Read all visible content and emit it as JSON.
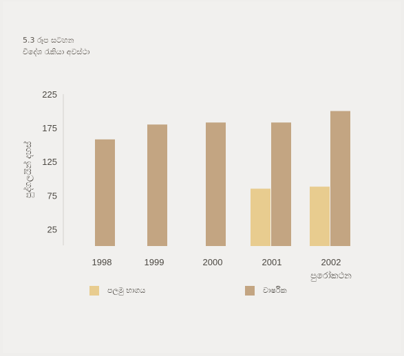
{
  "chart_data": {
    "type": "bar",
    "title": "5.3 රූප සටහන",
    "subtitle": "විදේශ රැකියා අවස්ථා",
    "ylabel": "පුද්ගලයින් දහස්",
    "xlabel": "",
    "ylim": [
      0,
      225
    ],
    "yticks": [
      25,
      75,
      125,
      175,
      225
    ],
    "categories": [
      "1998",
      "1999",
      "2000",
      "2001",
      "2002"
    ],
    "category_sublabels": [
      "",
      "",
      "",
      "",
      "පුරෝකථන"
    ],
    "series": [
      {
        "name": "පලමු භාගය",
        "color": "#e8cc8f",
        "values": [
          null,
          null,
          null,
          85,
          88
        ]
      },
      {
        "name": "වාර්ෂික",
        "color": "#c3a582",
        "values": [
          158,
          180,
          183,
          183,
          200
        ]
      }
    ],
    "grid": false,
    "legend_position": "bottom"
  }
}
